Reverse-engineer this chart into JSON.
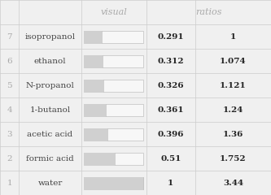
{
  "rows": [
    {
      "rank": "7",
      "name": "isopropanol",
      "value": 0.291,
      "ratio": "1"
    },
    {
      "rank": "6",
      "name": "ethanol",
      "value": 0.312,
      "ratio": "1.074"
    },
    {
      "rank": "5",
      "name": "N-propanol",
      "value": 0.326,
      "ratio": "1.121"
    },
    {
      "rank": "4",
      "name": "1-butanol",
      "value": 0.361,
      "ratio": "1.24"
    },
    {
      "rank": "3",
      "name": "acetic acid",
      "value": 0.396,
      "ratio": "1.36"
    },
    {
      "rank": "2",
      "name": "formic acid",
      "value": 0.51,
      "ratio": "1.752"
    },
    {
      "rank": "1",
      "name": "water",
      "value": 1.0,
      "ratio": "3.44"
    }
  ],
  "max_value": 1.0,
  "header_visual": "visual",
  "header_ratios": "ratios",
  "bg_color": "#f0f0f0",
  "bar_filled_color": "#d0d0d0",
  "bar_empty_color": "#f7f7f7",
  "bar_border_color": "#c0c0c0",
  "grid_color": "#cccccc",
  "text_color_header": "#aaaaaa",
  "text_color_rank": "#aaaaaa",
  "text_color_name": "#444444",
  "text_color_value": "#222222",
  "font_size_header": 8,
  "font_size_body": 7.5,
  "table_bg": "#f0f0f0"
}
